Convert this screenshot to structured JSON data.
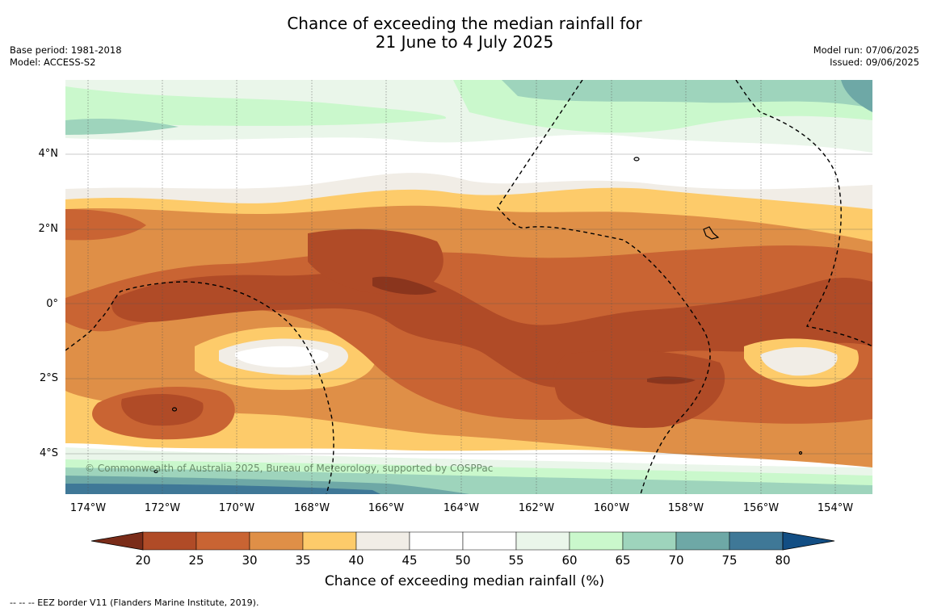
{
  "title_line1": "Chance of exceeding the median rainfall for",
  "title_line2": "21 June to 4 July 2025",
  "base_period": "Base period: 1981-2018",
  "model": "Model: ACCESS-S2",
  "model_run": "Model run: 07/06/2025",
  "issued": "Issued: 09/06/2025",
  "copyright": "© Commonwealth of Australia 2025, Bureau of Meteorology, supported by COSPPac",
  "lat_labels": [
    "4°N",
    "2°N",
    "0°",
    "2°S",
    "4°S"
  ],
  "lon_labels": [
    "174°W",
    "172°W",
    "170°W",
    "168°W",
    "166°W",
    "164°W",
    "162°W",
    "160°W",
    "158°W",
    "156°W",
    "154°W"
  ],
  "colorbar": {
    "ticks": [
      "20",
      "25",
      "30",
      "35",
      "40",
      "45",
      "50",
      "55",
      "60",
      "65",
      "70",
      "75",
      "80"
    ],
    "low_color": "#7a2c19",
    "high_color": "#124e84",
    "colors": [
      "#b04b27",
      "#c96433",
      "#df8f47",
      "#fdcb6a",
      "#f1ede6",
      "#ffffff",
      "#ffffff",
      "#eaf6ea",
      "#caf8cc",
      "#9ed4bc",
      "#6ea8a6",
      "#3f7897"
    ],
    "label": "Chance of exceeding median rainfall (%)"
  },
  "footnote": "-- -- -- EEZ border V11 (Flanders Marine Institute, 2019)."
}
